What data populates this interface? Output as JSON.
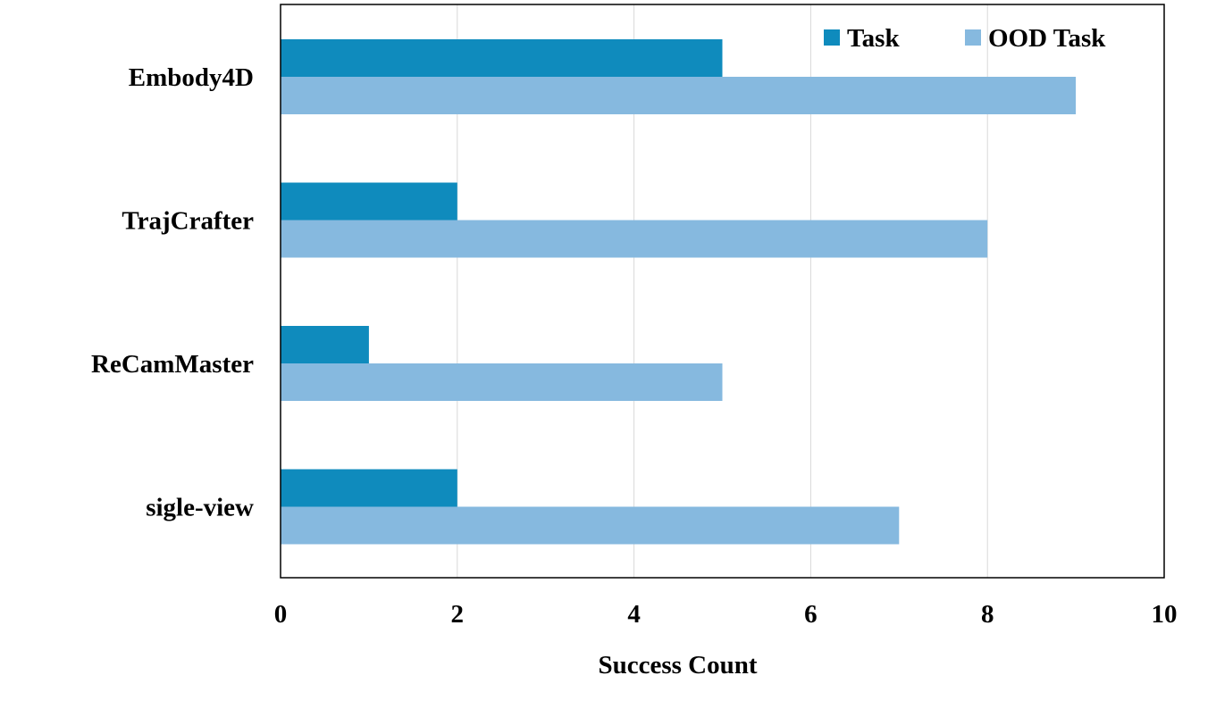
{
  "chart_data": {
    "type": "bar",
    "orientation": "horizontal",
    "title": "",
    "xlabel": "Success Count",
    "ylabel": "",
    "xlim": [
      0,
      10
    ],
    "x_ticks": [
      0,
      2,
      4,
      6,
      8,
      10
    ],
    "x_tick_labels": [
      "0",
      "2",
      "4",
      "6",
      "8",
      "10"
    ],
    "categories": [
      "Embody4D",
      "TrajCrafter",
      "ReCamMaster",
      "sigle-view"
    ],
    "series": [
      {
        "name": "Task",
        "values": [
          5,
          2,
          1,
          2
        ],
        "color": "#0f8bbd"
      },
      {
        "name": "OOD Task",
        "values": [
          9,
          8,
          5,
          7
        ],
        "color": "#86b9df"
      }
    ],
    "grid": "vertical",
    "legend_position": "top-right"
  }
}
